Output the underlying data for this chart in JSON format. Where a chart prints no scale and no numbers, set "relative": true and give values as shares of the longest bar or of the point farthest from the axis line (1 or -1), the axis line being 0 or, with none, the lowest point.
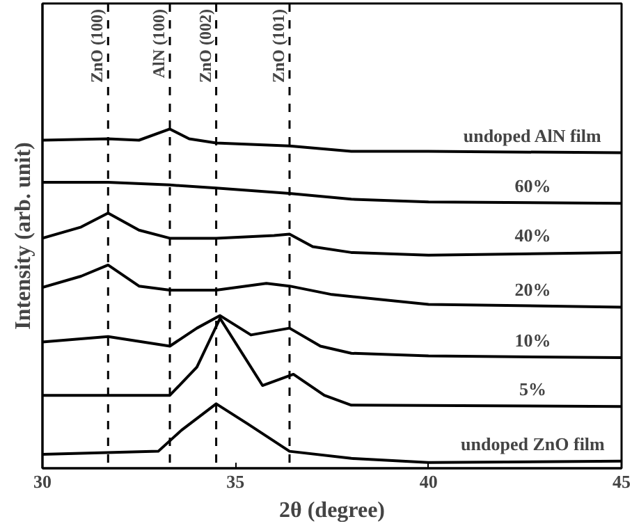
{
  "chart_data": {
    "type": "line",
    "relative": true,
    "xlabel": "2θ (degree)",
    "ylabel": "Intensity (arb. unit)",
    "xlim": [
      30,
      45
    ],
    "xticks": [
      30,
      35,
      40,
      45
    ],
    "tick_labels": "x",
    "grid": false,
    "marker": "none",
    "line_style": "solid",
    "series": [
      {
        "name": "undoped AlN film",
        "color": "#000000",
        "x": [
          30,
          31.7,
          32.5,
          33.3,
          33.8,
          34.5,
          36.4,
          38,
          40,
          45
        ],
        "values": [
          0.967,
          0.971,
          0.967,
          1.0,
          0.971,
          0.959,
          0.95,
          0.934,
          0.934,
          0.93
        ]
      },
      {
        "name": "60%",
        "color": "#000000",
        "x": [
          30,
          31.7,
          33.3,
          34.5,
          36.4,
          38,
          40,
          45
        ],
        "values": [
          0.843,
          0.843,
          0.835,
          0.826,
          0.81,
          0.793,
          0.785,
          0.781
        ]
      },
      {
        "name": "40%",
        "color": "#000000",
        "x": [
          30,
          31.0,
          31.7,
          32.5,
          33.3,
          34.5,
          36.0,
          36.4,
          37.0,
          38,
          40,
          45
        ],
        "values": [
          0.678,
          0.711,
          0.752,
          0.702,
          0.678,
          0.678,
          0.686,
          0.69,
          0.653,
          0.636,
          0.628,
          0.636
        ]
      },
      {
        "name": "20%",
        "color": "#000000",
        "x": [
          30,
          31.0,
          31.7,
          32.5,
          33.3,
          34.5,
          35.8,
          36.4,
          37.5,
          40,
          45
        ],
        "values": [
          0.533,
          0.566,
          0.599,
          0.537,
          0.525,
          0.525,
          0.545,
          0.537,
          0.512,
          0.483,
          0.475
        ]
      },
      {
        "name": "10%",
        "color": "#000000",
        "x": [
          30,
          31.7,
          33.3,
          34.0,
          34.6,
          35.4,
          36.4,
          37.2,
          38,
          40,
          45
        ],
        "values": [
          0.372,
          0.388,
          0.36,
          0.413,
          0.45,
          0.393,
          0.413,
          0.36,
          0.339,
          0.331,
          0.326
        ]
      },
      {
        "name": "5%",
        "color": "#000000",
        "x": [
          30,
          33.3,
          34.0,
          34.6,
          35.7,
          36.5,
          37.3,
          38,
          45
        ],
        "values": [
          0.215,
          0.215,
          0.298,
          0.442,
          0.244,
          0.277,
          0.215,
          0.186,
          0.182
        ]
      },
      {
        "name": "undoped ZnO film",
        "color": "#000000",
        "x": [
          30,
          33.0,
          33.6,
          34.5,
          35.3,
          36.4,
          38,
          40,
          45
        ],
        "values": [
          0.041,
          0.05,
          0.112,
          0.19,
          0.132,
          0.05,
          0.029,
          0.017,
          0.021
        ]
      }
    ],
    "ref_lines": [
      {
        "axis": "x",
        "value": 31.7,
        "label": "ZnO (100)",
        "color": "#000000",
        "line_style": "dashed"
      },
      {
        "axis": "x",
        "value": 33.3,
        "label": "AlN (100)",
        "color": "#000000",
        "line_style": "dashed"
      },
      {
        "axis": "x",
        "value": 34.5,
        "label": "ZnO (002)",
        "color": "#000000",
        "line_style": "dashed"
      },
      {
        "axis": "x",
        "value": 36.4,
        "label": "ZnO (101)",
        "color": "#000000",
        "line_style": "dashed"
      }
    ]
  }
}
